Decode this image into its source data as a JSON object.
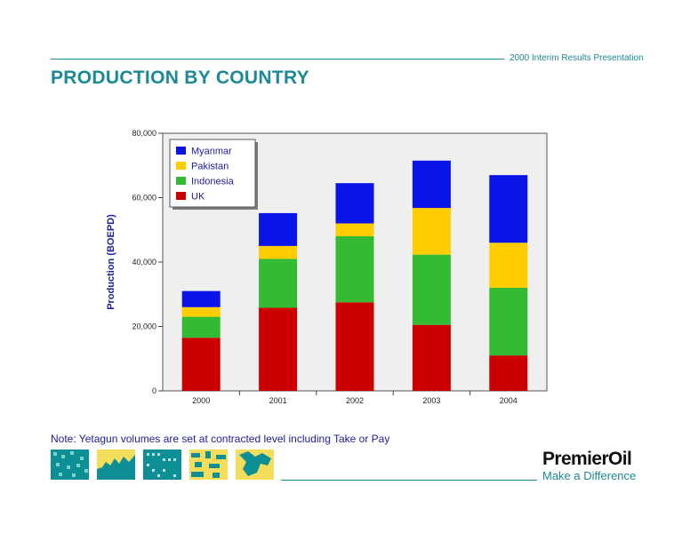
{
  "header": {
    "subtitle": "2000 Interim Results Presentation",
    "title": "PRODUCTION BY COUNTRY"
  },
  "chart_data": {
    "type": "bar",
    "stacked": true,
    "categories": [
      "2000",
      "2001",
      "2002",
      "2003",
      "2004"
    ],
    "series": [
      {
        "name": "UK",
        "color": "#cc0000",
        "values": [
          16500,
          25800,
          27500,
          20500,
          11000
        ]
      },
      {
        "name": "Indonesia",
        "color": "#33bb33",
        "values": [
          6500,
          15200,
          20500,
          21800,
          21000
        ]
      },
      {
        "name": "Pakistan",
        "color": "#ffcc00",
        "values": [
          3000,
          4000,
          4000,
          14500,
          14000
        ]
      },
      {
        "name": "Myanmar",
        "color": "#0a14e6",
        "values": [
          5000,
          10200,
          12500,
          14700,
          21000
        ]
      }
    ],
    "legend_order": [
      "Myanmar",
      "Pakistan",
      "Indonesia",
      "UK"
    ],
    "ylabel": "Production (BOEPD)",
    "xlabel": "",
    "ylim": [
      0,
      80000
    ],
    "y_ticks": [
      "0",
      "20,000",
      "40,000",
      "60,000",
      "80,000"
    ],
    "y_tick_values": [
      0,
      20000,
      40000,
      60000,
      80000
    ],
    "grid": false,
    "legend_position": "top-left"
  },
  "note": "Note: Yetagun volumes are set at contracted level including Take or Pay",
  "footer": {
    "brand": "PremierOil",
    "tagline": "Make a Difference"
  }
}
